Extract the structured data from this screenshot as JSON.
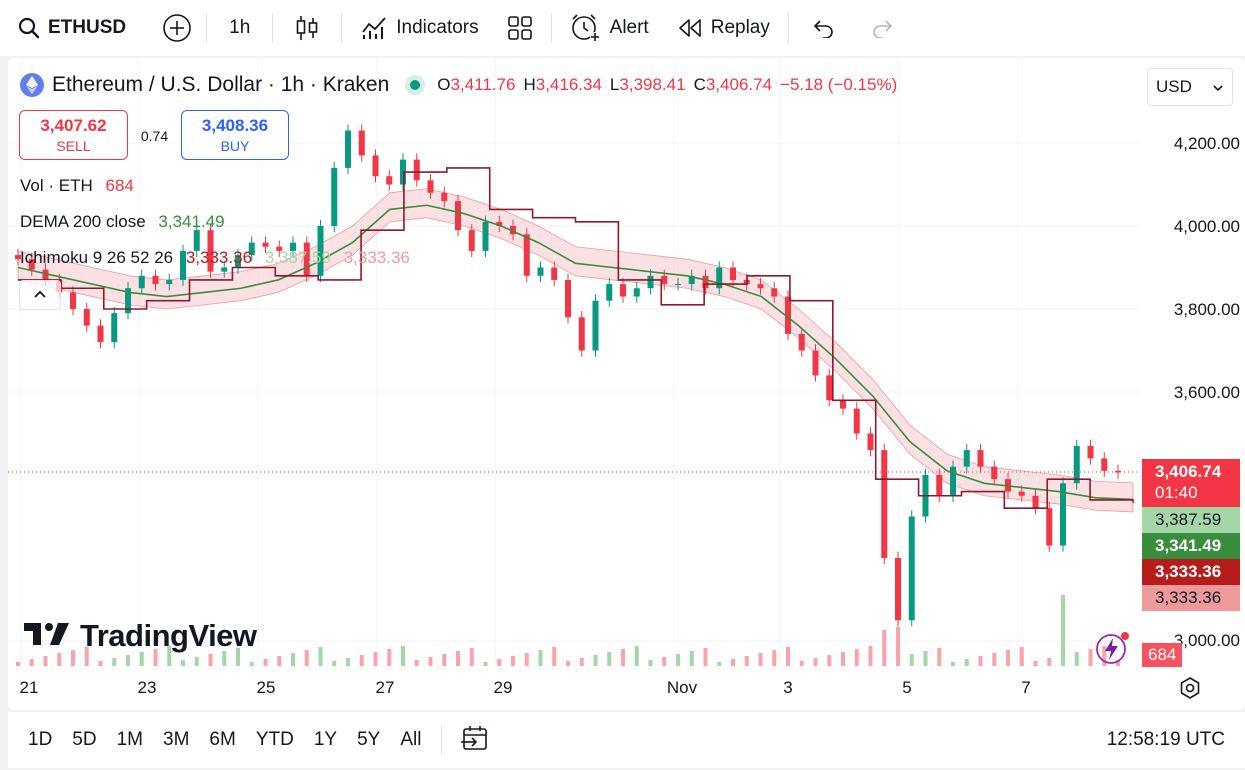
{
  "toolbar": {
    "symbol": "ETHUSD",
    "interval": "1h",
    "indicators_label": "Indicators",
    "alert_label": "Alert",
    "replay_label": "Replay"
  },
  "legend": {
    "title": "Ethereum / U.S. Dollar · 1h · Kraken",
    "open_key": "O",
    "open": "3,411.76",
    "high_key": "H",
    "high": "3,416.34",
    "low_key": "L",
    "low": "3,398.41",
    "close_key": "C",
    "close": "3,406.74",
    "change": "−5.18 (−0.15%)"
  },
  "trade": {
    "sell_price": "3,407.62",
    "sell_label": "SELL",
    "spread": "0.74",
    "buy_price": "3,408.36",
    "buy_label": "BUY"
  },
  "indicators": {
    "vol_name": "Vol · ETH",
    "vol_value": "684",
    "dema_name": "DEMA 200 close",
    "dema_value": "3,341.49",
    "ichimoku_name": "Ichimoku 9 26 52 26",
    "ichimoku_v1": "3,333.36",
    "ichimoku_v2": "3,387.59",
    "ichimoku_v3": "3,333.36"
  },
  "currency": "USD",
  "price_axis": {
    "labels": [
      "4,200.00",
      "4,000.00",
      "3,800.00",
      "3,600.00",
      "3,000.00"
    ],
    "tags": {
      "last_price": "3,406.74",
      "countdown": "01:40",
      "span_a": "3,387.59",
      "dema": "3,341.49",
      "kijun": "3,333.36",
      "span_b": "3,333.36",
      "volume": "684"
    }
  },
  "time_axis": [
    "21",
    "23",
    "25",
    "27",
    "29",
    "Nov",
    "3",
    "5",
    "7"
  ],
  "brand": "TradingView",
  "ranges": [
    "1D",
    "5D",
    "1M",
    "3M",
    "6M",
    "YTD",
    "1Y",
    "5Y",
    "All"
  ],
  "clock": "12:58:19 UTC",
  "colors": {
    "up": "#089981",
    "down": "#f23645",
    "dema": "#388e3c",
    "tenkan": "#8b1a2b",
    "cloud_bull": "#c8e6c9",
    "cloud_bear": "#f8c9cc",
    "accent": "#2962ff"
  },
  "chart_data": {
    "type": "candlestick",
    "symbol": "ETHUSD",
    "interval": "1h",
    "ylim": [
      2950,
      4300
    ],
    "yticks": [
      3000,
      3600,
      3800,
      4000,
      4200
    ],
    "xticks": [
      "21",
      "23",
      "25",
      "27",
      "29",
      "Nov",
      "3",
      "5",
      "7"
    ],
    "last_price": 3406.74,
    "series": [
      {
        "name": "price_close_approx",
        "values": [
          3920,
          3895,
          3870,
          3840,
          3800,
          3760,
          3720,
          3790,
          3850,
          3880,
          3860,
          3870,
          3940,
          3990,
          3890,
          3900,
          3930,
          3960,
          3950,
          3940,
          3960,
          3880,
          4000,
          4140,
          4230,
          4170,
          4120,
          4100,
          4160,
          4110,
          4080,
          4060,
          3990,
          3940,
          4010,
          4000,
          3980,
          3880,
          3900,
          3870,
          3780,
          3700,
          3820,
          3860,
          3830,
          3850,
          3880,
          3860,
          3860,
          3880,
          3850,
          3900,
          3870,
          3860,
          3850,
          3830,
          3740,
          3700,
          3640,
          3580,
          3560,
          3500,
          3460,
          3200,
          3050,
          3300,
          3400,
          3350,
          3420,
          3460,
          3420,
          3390,
          3360,
          3350,
          3320,
          3230,
          3380,
          3470,
          3440,
          3410,
          3406
        ]
      },
      {
        "name": "DEMA 200",
        "values": [
          3900,
          3880,
          3860,
          3840,
          3830,
          3840,
          3850,
          3870,
          3910,
          3960,
          4040,
          4050,
          4030,
          4000,
          3960,
          3910,
          3900,
          3890,
          3880,
          3860,
          3830,
          3760,
          3680,
          3590,
          3480,
          3410,
          3380,
          3370,
          3360,
          3345,
          3341
        ]
      },
      {
        "name": "Ichimoku conversion",
        "values": [
          3870,
          3850,
          3800,
          3820,
          3870,
          3900,
          3880,
          3870,
          3990,
          4130,
          4140,
          4040,
          4020,
          4010,
          3870,
          3810,
          3860,
          3880,
          3820,
          3580,
          3390,
          3350,
          3360,
          3320,
          3390,
          3340,
          3333
        ]
      }
    ]
  }
}
